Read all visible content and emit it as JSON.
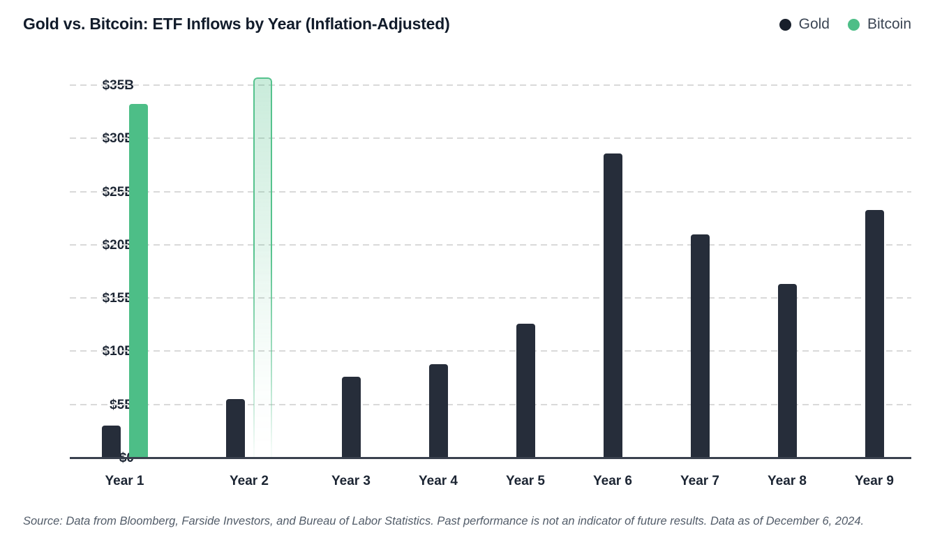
{
  "header": {
    "title": "Gold vs. Bitcoin: ETF Inflows by Year (Inflation-Adjusted)"
  },
  "legend": {
    "items": [
      {
        "label": "Gold",
        "color": "#181F2B"
      },
      {
        "label": "Bitcoin",
        "color": "#4DBE87"
      }
    ]
  },
  "footer": {
    "source_note": "Source: Data from Bloomberg, Farside Investors, and Bureau of Labor Statistics. Past performance is not an indicator of future results. Data as of December 6, 2024."
  },
  "chart_data": {
    "type": "bar",
    "title": "Gold vs. Bitcoin: ETF Inflows by Year (Inflation-Adjusted)",
    "categories": [
      "Year 1",
      "Year 2",
      "Year 3",
      "Year 4",
      "Year 5",
      "Year 6",
      "Year 7",
      "Year 8",
      "Year 9"
    ],
    "series": [
      {
        "name": "Gold",
        "color": "#262D3A",
        "values": [
          3.0,
          5.5,
          7.6,
          8.8,
          12.6,
          28.6,
          21.0,
          16.3,
          23.3
        ]
      },
      {
        "name": "Bitcoin",
        "color": "#4DBE87",
        "values": [
          33.2,
          35.7,
          null,
          null,
          null,
          null,
          null,
          null,
          null
        ],
        "faded_projected_indices": [
          1
        ]
      }
    ],
    "xlabel": "",
    "ylabel": "",
    "ylim": [
      0,
      35
    ],
    "unit": "billions USD",
    "ytick_values": [
      0,
      5,
      10,
      15,
      20,
      25,
      30,
      35
    ],
    "ytick_labels": [
      "$0",
      "$5B",
      "$10B",
      "$15B",
      "$20B",
      "$25B",
      "$30B",
      "$35B"
    ],
    "grid": "horizontal-dashed",
    "legend_position": "top-right",
    "gridline_color": "#D9D9D9",
    "axis_line_color": "#3A414E"
  }
}
